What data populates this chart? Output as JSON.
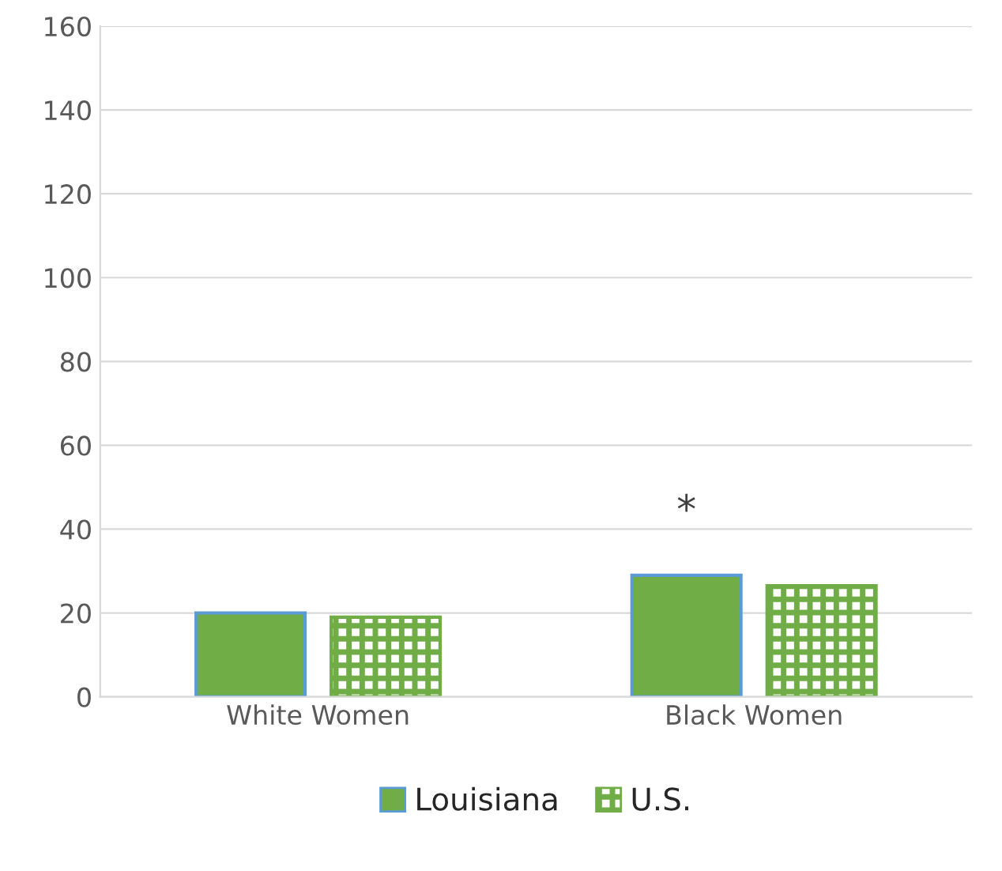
{
  "chart_data": {
    "type": "bar",
    "categories": [
      "White Women",
      "Black Women"
    ],
    "series": [
      {
        "name": "Louisiana",
        "color": "#70ad47",
        "values": [
          20,
          29
        ]
      },
      {
        "name": "U.S.",
        "color": "#70ad47",
        "values": [
          19,
          26.5
        ]
      }
    ],
    "ylim": [
      0,
      160
    ],
    "yticks": [
      0,
      20,
      40,
      60,
      80,
      100,
      120,
      140,
      160
    ],
    "grid": "y",
    "legend": "bottom",
    "annotations": [
      "*"
    ]
  }
}
